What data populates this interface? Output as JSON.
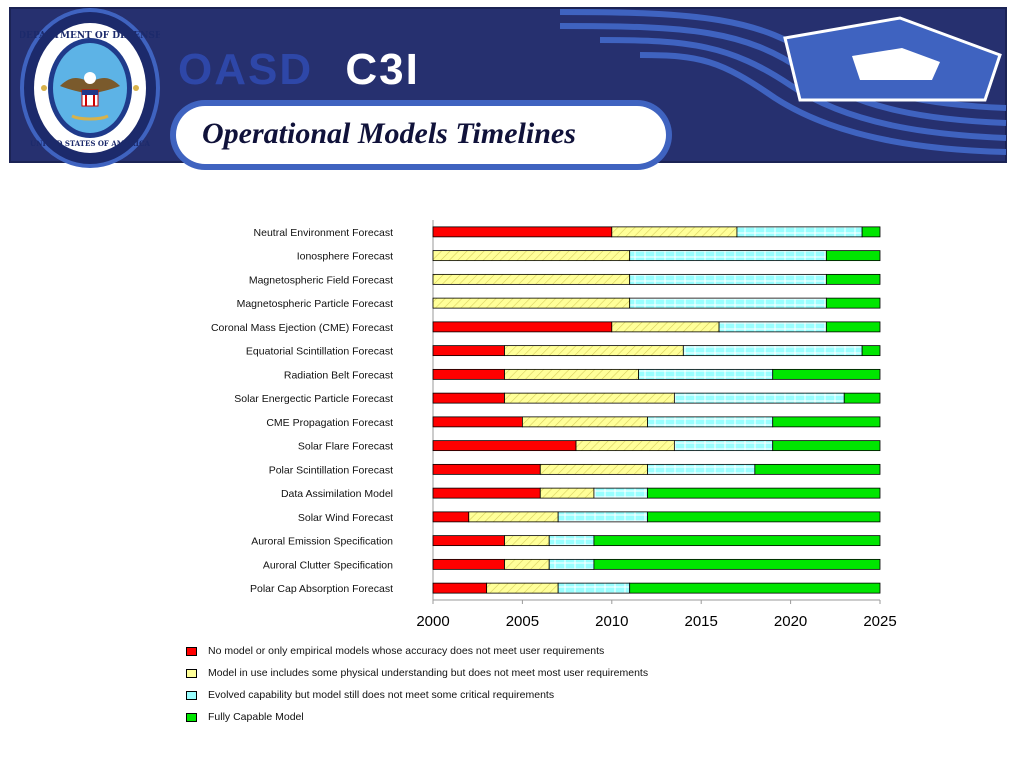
{
  "header": {
    "brand_part1": "OASD",
    "brand_part2": "C3I",
    "slide_title": "Operational Models Timelines",
    "seal_text_top": "DEPARTMENT OF DEFENSE",
    "seal_text_bottom": "UNITED STATES OF AMERICA",
    "banner_color": "#2a3577",
    "banner_accent": "#3f63c0"
  },
  "legend": [
    {
      "key": "red",
      "label": "No model or only empirical models whose accuracy does not meet user requirements"
    },
    {
      "key": "yellow",
      "label": "Model in use includes some physical understanding but does not meet most user requirements"
    },
    {
      "key": "cyan",
      "label": "Evolved capability but model still does not meet some critical requirements"
    },
    {
      "key": "green",
      "label": "Fully Capable Model"
    }
  ],
  "chart_data": {
    "type": "bar",
    "orientation": "horizontal",
    "stacked": true,
    "title": "",
    "xlabel": "",
    "ylabel": "",
    "xlim": [
      2000,
      2025
    ],
    "xticks": [
      2000,
      2005,
      2010,
      2015,
      2020,
      2025
    ],
    "colors": {
      "red": "#ff0000",
      "yellow": "#ffff99",
      "cyan": "#99ffff",
      "green": "#00e600"
    },
    "categories": [
      "Neutral Environment Forecast",
      "Ionosphere Forecast",
      "Magnetospheric Field Forecast",
      "Magnetospheric Particle Forecast",
      "Coronal Mass Ejection (CME) Forecast",
      "Equatorial Scintillation Forecast",
      "Radiation Belt Forecast",
      "Solar Energectic Particle Forecast",
      "CME Propagation Forecast",
      "Solar Flare Forecast",
      "Polar Scintillation Forecast",
      "Data Assimilation Model",
      "Solar Wind Forecast",
      "Auroral Emission Specification",
      "Auroral Clutter Specification",
      "Polar Cap Absorption Forecast"
    ],
    "series": [
      {
        "key": "red",
        "name": "No model or only empirical models whose accuracy does not meet user requirements",
        "starts": [
          2000,
          2000,
          2000,
          2000,
          2000,
          2000,
          2000,
          2000,
          2000,
          2000,
          2000,
          2000,
          2000,
          2000,
          2000,
          2000
        ],
        "ends": [
          2010,
          2000,
          2000,
          2000,
          2010,
          2004,
          2004,
          2004,
          2005,
          2008,
          2006,
          2006,
          2002,
          2004,
          2004,
          2003
        ]
      },
      {
        "key": "yellow",
        "name": "Model in use includes some physical understanding but does not meet most user requirements",
        "starts": [
          2010,
          2000,
          2000,
          2000,
          2010,
          2004,
          2004,
          2004,
          2005,
          2008,
          2006,
          2006,
          2002,
          2004,
          2004,
          2003
        ],
        "ends": [
          2017,
          2011,
          2011,
          2011,
          2016,
          2014,
          2011.5,
          2013.5,
          2012,
          2013.5,
          2012,
          2009,
          2007,
          2006.5,
          2006.5,
          2007
        ]
      },
      {
        "key": "cyan",
        "name": "Evolved capability but model still does not meet some critical requirements",
        "starts": [
          2017,
          2011,
          2011,
          2011,
          2016,
          2014,
          2011.5,
          2013.5,
          2012,
          2013.5,
          2012,
          2009,
          2007,
          2006.5,
          2006.5,
          2007
        ],
        "ends": [
          2024,
          2022,
          2022,
          2022,
          2022,
          2024,
          2019,
          2023,
          2019,
          2019,
          2018,
          2012,
          2012,
          2009,
          2009,
          2011
        ]
      },
      {
        "key": "green",
        "name": "Fully Capable Model",
        "starts": [
          2024,
          2022,
          2022,
          2022,
          2022,
          2024,
          2019,
          2023,
          2019,
          2019,
          2018,
          2012,
          2012,
          2009,
          2009,
          2011
        ],
        "ends": [
          2025,
          2025,
          2025,
          2025,
          2025,
          2025,
          2025,
          2025,
          2025,
          2025,
          2025,
          2025,
          2025,
          2025,
          2025,
          2025
        ]
      }
    ]
  }
}
